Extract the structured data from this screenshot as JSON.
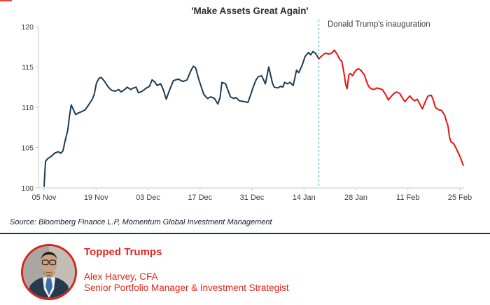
{
  "chart_data": {
    "type": "line",
    "title": "'Make Assets Great Again'",
    "annotation": {
      "label": "Donald Trump's inauguration",
      "day": 74,
      "style": "dashed-vertical-line"
    },
    "x_unit": "days since 05 Nov",
    "x_tick_labels": [
      "05 Nov",
      "19 Nov",
      "03 Dec",
      "17 Dec",
      "31 Dec",
      "14 Jan",
      "28 Jan",
      "11 Feb",
      "25 Feb"
    ],
    "x_tick_days": [
      0,
      14,
      28,
      42,
      56,
      70,
      84,
      98,
      112
    ],
    "xlim": [
      0,
      113
    ],
    "ylim": [
      100,
      120
    ],
    "y_ticks": [
      100,
      105,
      110,
      115,
      120
    ],
    "grid": false,
    "legend": "none",
    "series": [
      {
        "name": "Pre-inauguration",
        "color": "#1d3c55",
        "points": [
          [
            0,
            100.2
          ],
          [
            0.2,
            101.9
          ],
          [
            0.4,
            103.3
          ],
          [
            0.9,
            103.6
          ],
          [
            1.9,
            103.9
          ],
          [
            2.8,
            104.3
          ],
          [
            3.8,
            104.5
          ],
          [
            4.5,
            104.3
          ],
          [
            5.1,
            104.6
          ],
          [
            5.6,
            105.7
          ],
          [
            6.4,
            107.2
          ],
          [
            6.8,
            108.8
          ],
          [
            7.3,
            110.3
          ],
          [
            7.9,
            109.7
          ],
          [
            8.5,
            109.1
          ],
          [
            9.2,
            109.3
          ],
          [
            9.8,
            109.4
          ],
          [
            10.3,
            109.5
          ],
          [
            11.1,
            109.7
          ],
          [
            12,
            110.3
          ],
          [
            13,
            111
          ],
          [
            13.5,
            111.6
          ],
          [
            14.1,
            113
          ],
          [
            14.8,
            113.6
          ],
          [
            15.4,
            113.7
          ],
          [
            16.3,
            113.2
          ],
          [
            17.3,
            112.5
          ],
          [
            18.2,
            112.1
          ],
          [
            19.2,
            112
          ],
          [
            20.1,
            112.2
          ],
          [
            20.7,
            111.9
          ],
          [
            21.4,
            112.1
          ],
          [
            22.4,
            112.5
          ],
          [
            23.3,
            112.2
          ],
          [
            24.1,
            112.4
          ],
          [
            24.8,
            112.5
          ],
          [
            25.4,
            111.8
          ],
          [
            26.1,
            111.9
          ],
          [
            26.7,
            112.1
          ],
          [
            27.6,
            112.4
          ],
          [
            28.4,
            112.6
          ],
          [
            29.1,
            113.4
          ],
          [
            29.9,
            113.1
          ],
          [
            30.4,
            112.7
          ],
          [
            31.4,
            112.9
          ],
          [
            32.1,
            112.2
          ],
          [
            32.9,
            111
          ],
          [
            33.6,
            111.9
          ],
          [
            34.8,
            113.3
          ],
          [
            36.1,
            113.5
          ],
          [
            37.4,
            113.2
          ],
          [
            38.5,
            113.4
          ],
          [
            39.5,
            114.5
          ],
          [
            40.2,
            115.1
          ],
          [
            40.8,
            114.9
          ],
          [
            41.7,
            113.4
          ],
          [
            43,
            111.6
          ],
          [
            44,
            111.1
          ],
          [
            44.9,
            111.3
          ],
          [
            45.9,
            111.1
          ],
          [
            46.8,
            110.4
          ],
          [
            47.4,
            111.2
          ],
          [
            47.9,
            113.1
          ],
          [
            48.9,
            112.9
          ],
          [
            50.2,
            111.3
          ],
          [
            51.1,
            111.1
          ],
          [
            51.7,
            111.2
          ],
          [
            52.6,
            110.8
          ],
          [
            53.9,
            110.7
          ],
          [
            54.9,
            110.6
          ],
          [
            55.6,
            111.5
          ],
          [
            56.4,
            112.6
          ],
          [
            57.1,
            113.4
          ],
          [
            57.7,
            113.8
          ],
          [
            58.6,
            113.9
          ],
          [
            59.6,
            112.9
          ],
          [
            60.5,
            115
          ],
          [
            61.5,
            113
          ],
          [
            62,
            112.5
          ],
          [
            63,
            112.4
          ],
          [
            63.7,
            112.6
          ],
          [
            64.3,
            112.5
          ],
          [
            64.8,
            113.1
          ],
          [
            65.6,
            112.9
          ],
          [
            66.2,
            113.1
          ],
          [
            67.1,
            112.7
          ],
          [
            68,
            114.6
          ],
          [
            68.6,
            114.3
          ],
          [
            69.5,
            115.2
          ],
          [
            70.3,
            116.3
          ],
          [
            71.2,
            116.8
          ],
          [
            71.8,
            116.5
          ],
          [
            72.4,
            116.9
          ],
          [
            73.1,
            116.7
          ],
          [
            74,
            116
          ]
        ]
      },
      {
        "name": "Post-inauguration",
        "color": "#ee1111",
        "points": [
          [
            74,
            116
          ],
          [
            74.6,
            116.3
          ],
          [
            75.4,
            116.6
          ],
          [
            75.9,
            116.7
          ],
          [
            76.7,
            116.6
          ],
          [
            77.4,
            116.7
          ],
          [
            78.2,
            117.1
          ],
          [
            78.9,
            116.6
          ],
          [
            79.7,
            115.9
          ],
          [
            80.2,
            115.7
          ],
          [
            80.8,
            114.2
          ],
          [
            81.2,
            112.9
          ],
          [
            81.6,
            112.3
          ],
          [
            82.1,
            114
          ],
          [
            82.5,
            114.2
          ],
          [
            83.1,
            113.9
          ],
          [
            83.8,
            114.5
          ],
          [
            84.6,
            114.8
          ],
          [
            85.3,
            114.6
          ],
          [
            86.3,
            114
          ],
          [
            86.8,
            113.3
          ],
          [
            87.4,
            112.6
          ],
          [
            88.1,
            112.3
          ],
          [
            88.9,
            112.2
          ],
          [
            89.6,
            112.4
          ],
          [
            90.4,
            112.3
          ],
          [
            91.1,
            112.2
          ],
          [
            92.1,
            111.5
          ],
          [
            92.7,
            110.9
          ],
          [
            93.4,
            111.3
          ],
          [
            94.2,
            111.7
          ],
          [
            94.9,
            111.9
          ],
          [
            95.8,
            111.7
          ],
          [
            96.6,
            111.1
          ],
          [
            97.2,
            110.7
          ],
          [
            97.9,
            111.1
          ],
          [
            98.5,
            111.4
          ],
          [
            99,
            111.1
          ],
          [
            99.8,
            110.8
          ],
          [
            100.5,
            111
          ],
          [
            101.1,
            110.5
          ],
          [
            101.9,
            109.8
          ],
          [
            102.6,
            110.6
          ],
          [
            103.4,
            111.4
          ],
          [
            104.3,
            111.5
          ],
          [
            104.9,
            110.8
          ],
          [
            105.4,
            110
          ],
          [
            106.2,
            109.7
          ],
          [
            107.1,
            109.6
          ],
          [
            107.9,
            109
          ],
          [
            108.4,
            108.2
          ],
          [
            108.8,
            107.7
          ],
          [
            109.2,
            106.3
          ],
          [
            109.6,
            105.7
          ],
          [
            110.3,
            105.5
          ],
          [
            110.9,
            105
          ],
          [
            111.4,
            104.5
          ],
          [
            112,
            103.9
          ],
          [
            112.6,
            103.2
          ],
          [
            112.9,
            102.8
          ]
        ]
      }
    ]
  },
  "chart": {
    "title": "'Make Assets Great Again'",
    "annotation_label": "Donald Trump's inauguration",
    "colors": {
      "pre_line": "#1d3c55",
      "post_line": "#ee1111",
      "event_line": "#7fcbe4",
      "axis": "#c9c9c9",
      "tick_text": "#3d3d3d"
    }
  },
  "source_line": "Source: Bloomberg Finance L.P, Momentum Global Investment Management",
  "divider_color": "#1f3557",
  "footer": {
    "title": "Topped Trumps",
    "author": "Alex Harvey, CFA",
    "role": "Senior Portfolio Manager & Investment Strategist",
    "text_color": "#e0281e",
    "photo_border_color": "#d9251c",
    "photo": "portrait-of-man-in-suit"
  }
}
